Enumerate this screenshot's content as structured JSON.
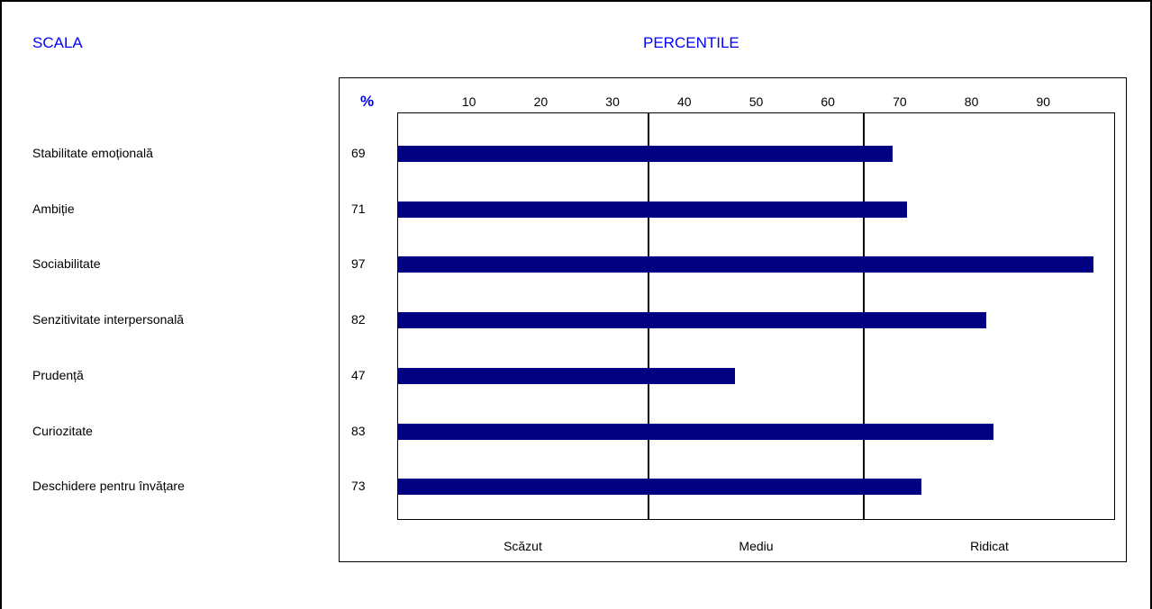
{
  "header": {
    "scale_title": "SCALA",
    "percentile_title": "PERCENTILE",
    "percent_symbol": "%"
  },
  "colors": {
    "bar": "#000080",
    "header_text": "#0000ff"
  },
  "chart_data": {
    "type": "bar",
    "orientation": "horizontal",
    "title": "PERCENTILE",
    "categories": [
      "Stabilitate emoțională",
      "Ambiție",
      "Sociabilitate",
      "Senzitivitate interpersonală",
      "Prudență",
      "Curiozitate",
      "Deschidere pentru învățare"
    ],
    "values": [
      69,
      71,
      97,
      82,
      47,
      83,
      73
    ],
    "value_labels": [
      "69",
      "71",
      "97",
      "82",
      "47",
      "83",
      "73"
    ],
    "xlim": [
      0,
      100
    ],
    "x_ticks": [
      "10",
      "20",
      "30",
      "40",
      "50",
      "60",
      "70",
      "80",
      "90"
    ],
    "x_tick_values": [
      10,
      20,
      30,
      40,
      50,
      60,
      70,
      80,
      90
    ],
    "band_boundaries": [
      35,
      65
    ],
    "bands": [
      "Scăzut",
      "Mediu",
      "Ridicat"
    ],
    "band_centers": [
      17.5,
      50,
      82.5
    ],
    "grid": false,
    "legend": "none"
  }
}
